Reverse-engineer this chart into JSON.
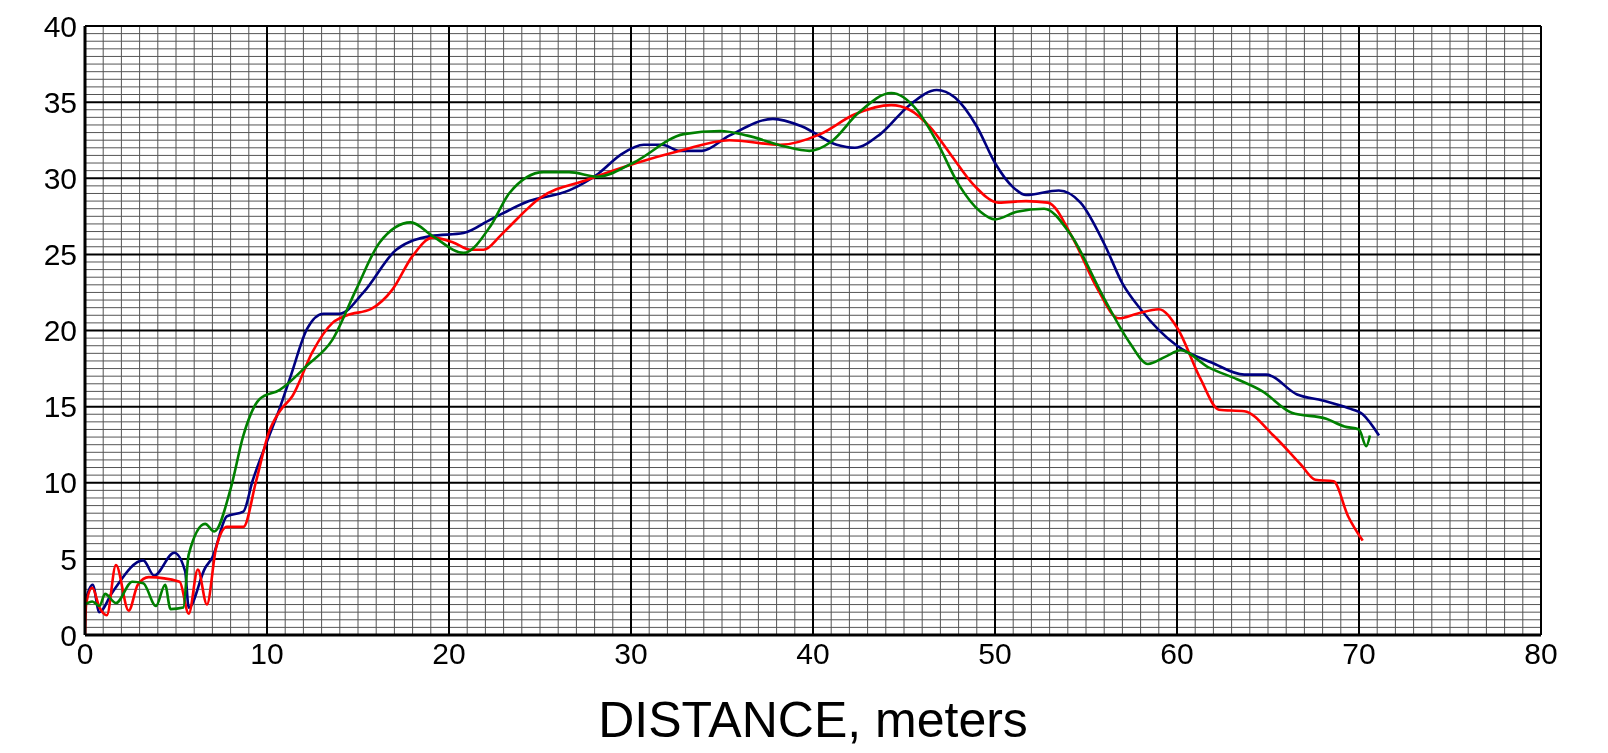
{
  "chart_data": {
    "type": "line",
    "xlabel": "DISTANCE, meters",
    "xlim": [
      0,
      80
    ],
    "xticks": [
      0,
      10,
      20,
      30,
      40,
      50,
      60,
      70,
      80
    ],
    "ylim": [
      0,
      40
    ],
    "yticks": [
      0,
      5,
      10,
      15,
      20,
      25,
      30,
      35,
      40
    ],
    "grid": true,
    "marker": "none",
    "line_style": "solid",
    "series": [
      {
        "color": "#000080",
        "x": [
          0.06,
          0.42,
          0.79,
          1.5,
          3.2,
          3.8,
          4.9,
          5.5,
          5.7,
          6.6,
          7.0,
          7.8,
          8.7,
          9.2,
          10.0,
          10.7,
          11.3,
          12.2,
          13.1,
          14.0,
          15.3,
          17.1,
          19.0,
          20.8,
          22.3,
          24.4,
          26.6,
          28.2,
          29.5,
          30.7,
          31.7,
          32.7,
          33.9,
          35.4,
          37.8,
          39.4,
          41.3,
          42.3,
          43.7,
          45.3,
          46.8,
          47.8,
          49.0,
          50.0,
          51.0,
          51.7,
          53.5,
          54.7,
          56.0,
          57.0,
          58.0,
          60.0,
          61.9,
          63.7,
          64.9,
          66.6,
          68.0,
          69.4,
          70.2,
          71.1
        ],
        "values": [
          2.4,
          3.3,
          1.5,
          2.8,
          4.9,
          3.9,
          5.4,
          4.2,
          1.8,
          4.4,
          5.1,
          7.8,
          8.1,
          10.1,
          12.7,
          14.9,
          17.0,
          20.1,
          21.1,
          21.1,
          22.5,
          25.3,
          26.2,
          26.4,
          27.3,
          28.5,
          29.2,
          30.3,
          31.6,
          32.2,
          32.2,
          31.8,
          31.8,
          32.8,
          33.9,
          33.4,
          32.2,
          32.0,
          32.9,
          34.8,
          35.8,
          35.3,
          33.4,
          31.0,
          29.4,
          28.9,
          29.2,
          28.4,
          25.7,
          23.1,
          21.4,
          19.0,
          17.9,
          17.1,
          17.1,
          15.8,
          15.4,
          14.9,
          14.5,
          13.1
        ]
      },
      {
        "color": "#ff0000",
        "x": [
          0,
          0.06,
          0.4,
          0.8,
          1.2,
          1.7,
          2.4,
          2.9,
          3.5,
          5.2,
          5.7,
          6.2,
          6.7,
          7.2,
          7.8,
          8.7,
          9.4,
          10.1,
          10.7,
          11.4,
          12.5,
          13.6,
          14.4,
          15.7,
          16.9,
          18.0,
          19.1,
          20.2,
          21.2,
          21.9,
          22.8,
          23.3,
          25.0,
          27.6,
          30.3,
          32.7,
          35.4,
          38.2,
          40.4,
          42.3,
          44.3,
          45.3,
          46.4,
          47.6,
          48.8,
          50.2,
          51.7,
          52.9,
          54.3,
          55.6,
          56.8,
          57.8,
          59.0,
          60.0,
          61.3,
          62.3,
          63.7,
          65.3,
          66.8,
          67.6,
          68.6,
          69.4,
          70.2
        ],
        "values": [
          0,
          2.0,
          3.1,
          1.8,
          1.3,
          4.6,
          1.6,
          3.3,
          3.8,
          3.5,
          1.4,
          4.3,
          2.0,
          5.7,
          7.1,
          7.1,
          10.1,
          13.3,
          14.7,
          15.7,
          18.6,
          20.5,
          21.0,
          21.4,
          22.7,
          24.9,
          26.1,
          25.8,
          25.3,
          25.3,
          26.2,
          26.8,
          28.7,
          29.9,
          31.0,
          31.8,
          32.5,
          32.2,
          32.9,
          34.2,
          34.8,
          34.5,
          33.4,
          31.5,
          29.6,
          28.4,
          28.5,
          28.4,
          26.0,
          22.8,
          20.8,
          21.1,
          21.4,
          20.2,
          16.8,
          14.8,
          14.7,
          13.1,
          11.2,
          10.2,
          10.1,
          7.8,
          6.2
        ]
      },
      {
        "color": "#008000",
        "x": [
          0,
          0.4,
          0.8,
          1.1,
          1.7,
          2.6,
          3.2,
          3.9,
          4.4,
          4.7,
          5.4,
          5.7,
          6.6,
          7.1,
          8.0,
          8.7,
          9.6,
          10.7,
          12.2,
          13.6,
          14.9,
          16.2,
          17.9,
          19.1,
          20.8,
          22.3,
          23.3,
          25.2,
          26.6,
          28.2,
          30.1,
          32.9,
          34.9,
          36.4,
          38.4,
          39.8,
          41.0,
          42.5,
          44.3,
          45.7,
          46.8,
          48.0,
          49.2,
          50.0,
          51.2,
          52.7,
          54.1,
          56.0,
          57.4,
          58.4,
          59.4,
          60.2,
          61.7,
          63.3,
          64.7,
          66.3,
          68.2,
          69.2,
          70.0,
          70.4,
          70.6
        ],
        "values": [
          2.0,
          2.2,
          1.9,
          2.7,
          2.1,
          3.5,
          3.4,
          1.9,
          3.3,
          1.7,
          1.8,
          5.3,
          7.3,
          6.8,
          9.6,
          13.1,
          15.5,
          16.1,
          17.7,
          19.4,
          22.7,
          25.8,
          27.1,
          26.2,
          25.1,
          26.9,
          29.0,
          30.4,
          30.4,
          30.1,
          31.0,
          32.9,
          33.1,
          32.8,
          32.1,
          31.8,
          32.4,
          34.3,
          35.6,
          34.5,
          32.4,
          29.6,
          27.8,
          27.3,
          27.8,
          28.0,
          26.4,
          22.1,
          19.2,
          17.8,
          18.3,
          18.7,
          17.6,
          16.8,
          16.0,
          14.6,
          14.2,
          13.7,
          13.5,
          12.4,
          13.1
        ]
      }
    ]
  }
}
